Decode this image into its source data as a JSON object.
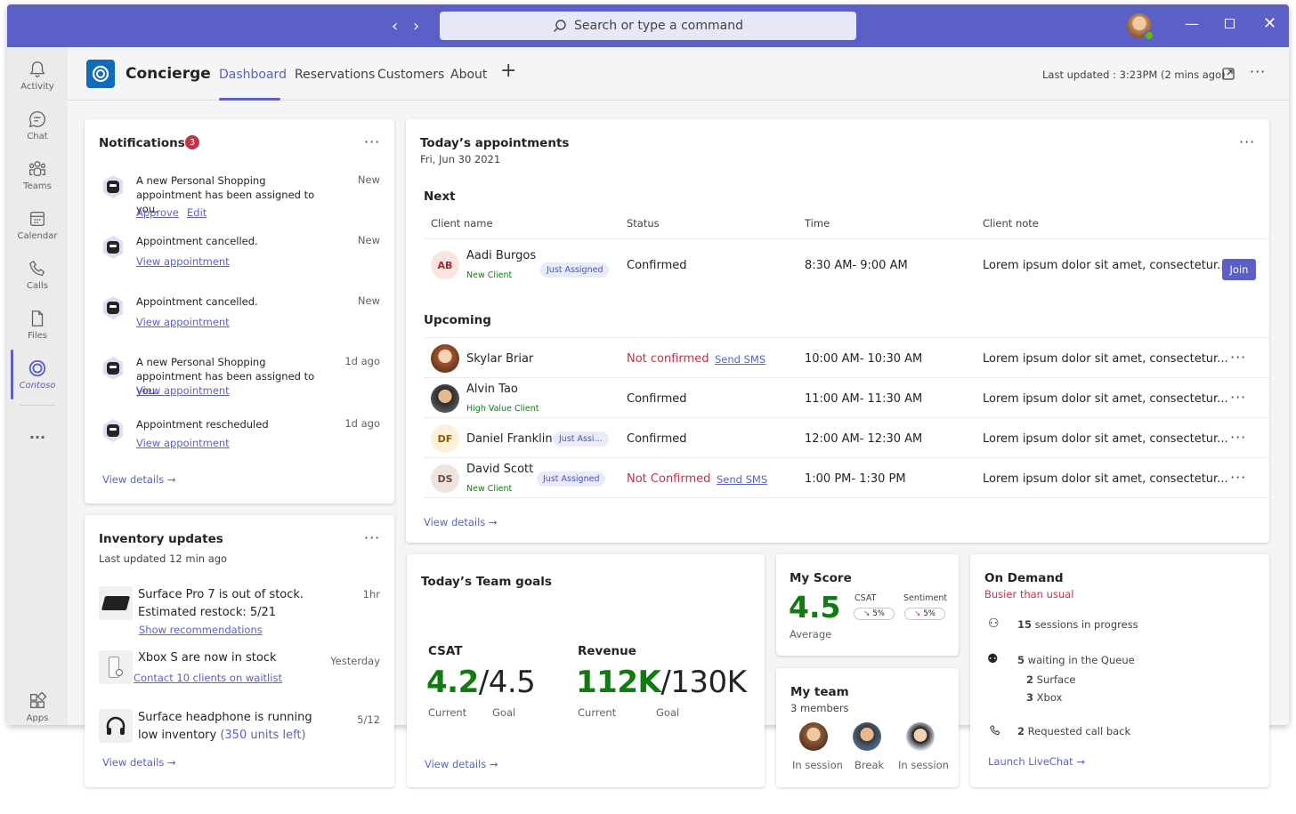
{
  "window": {
    "search_placeholder": "Search or type a command",
    "controls": [
      "minimize-icon",
      "maximize-icon",
      "close-icon"
    ]
  },
  "rail": {
    "items": [
      {
        "label": "Activity",
        "icon": "bell-icon"
      },
      {
        "label": "Chat",
        "icon": "chat-icon"
      },
      {
        "label": "Teams",
        "icon": "teams-icon"
      },
      {
        "label": "Calendar",
        "icon": "calendar-icon"
      },
      {
        "label": "Calls",
        "icon": "phone-icon"
      },
      {
        "label": "Files",
        "icon": "file-icon"
      },
      {
        "label": "Contoso",
        "icon": "contoso-icon"
      },
      {
        "label": "Apps",
        "icon": "apps-icon"
      }
    ],
    "more": "..."
  },
  "app": {
    "title": "Concierge",
    "tabs": [
      {
        "label": "Dashboard",
        "active": true
      },
      {
        "label": "Reservations"
      },
      {
        "label": "Customers"
      },
      {
        "label": "About"
      }
    ],
    "add_tab": "+",
    "last_updated": "Last updated : 3:23PM (2 mins ago)"
  },
  "notifications": {
    "title": "Notifications",
    "count": "3",
    "items": [
      {
        "text": "A new Personal Shopping appointment has been assigned to you.",
        "status": "New",
        "links": [
          "Approve",
          "Edit"
        ]
      },
      {
        "text": "Appointment cancelled.",
        "status": "New",
        "links": [
          "View appointment"
        ]
      },
      {
        "text": "Appointment cancelled.",
        "status": "New",
        "links": [
          "View appointment"
        ]
      },
      {
        "text": "A new Personal Shopping appointment has been assigned to you.",
        "status": "1d ago",
        "links": [
          "View appointment"
        ]
      },
      {
        "text": "Appointment rescheduled",
        "status": "1d ago",
        "links": [
          "View appointment"
        ]
      }
    ],
    "view_details": "View details"
  },
  "appointments": {
    "title": "Today’s appointments",
    "date": "Fri, Jun 30 2021",
    "next_label": "Next",
    "upcoming_label": "Upcoming",
    "columns": [
      "Client name",
      "Status",
      "Time",
      "Client note"
    ],
    "next": {
      "initials": "AB",
      "name": "Aadi Burgos",
      "badge": "Just Assigned",
      "sub": "New Client",
      "status": "Confirmed",
      "time": "8:30 AM- 9:00 AM",
      "note": "Lorem ipsum dolor sit amet, consectetur...",
      "action": "Join"
    },
    "upcoming": [
      {
        "name": "Skylar Briar",
        "status": "Not confirmed",
        "sms": "Send SMS",
        "time": "10:00 AM- 10:30 AM",
        "note": "Lorem ipsum dolor sit amet, consectetur..."
      },
      {
        "name": "Alvin Tao",
        "sub": "High Value Client",
        "status": "Confirmed",
        "time": "11:00 AM- 11:30 AM",
        "note": "Lorem ipsum dolor sit amet, consectetur..."
      },
      {
        "initials": "DF",
        "name": "Daniel Franklin",
        "badge": "Just Assi...",
        "status": "Confirmed",
        "time": "12:00 AM- 12:30 AM",
        "note": "Lorem ipsum dolor sit amet, consectetur..."
      },
      {
        "initials": "DS",
        "name": "David Scott",
        "badge": "Just Assigned",
        "sub": "New Client",
        "status": "Not Confirmed",
        "sms": "Send SMS",
        "time": "1:00 PM- 1:30 PM",
        "note": "Lorem ipsum dolor sit amet, consectetur..."
      }
    ],
    "view_details": "View details"
  },
  "inventory": {
    "title": "Inventory updates",
    "subtitle": "Last updated 12 min ago",
    "items": [
      {
        "line1": "Surface Pro 7 is out of stock.",
        "line2": "Estimated restock: 5/21",
        "time": "1hr",
        "link": "Show recommendations"
      },
      {
        "line1": "Xbox S are now in stock",
        "time": "Yesterday",
        "link": "Contact 10 clients on waitlist"
      },
      {
        "line1": "Surface headphone is running",
        "line2a": "low inventory ",
        "line2b": "(350 units left)",
        "time": "5/12"
      }
    ],
    "view_details": "View details"
  },
  "goals": {
    "title": "Today’s Team goals",
    "csat": {
      "label": "CSAT",
      "current": "4.2",
      "goal": "/4.5",
      "current_label": "Current",
      "goal_label": "Goal"
    },
    "revenue": {
      "label": "Revenue",
      "current": "112K",
      "goal": "/130K",
      "current_label": "Current",
      "goal_label": "Goal"
    },
    "view_details": "View details"
  },
  "score": {
    "title": "My Score",
    "value": "4.5",
    "value_label": "Average",
    "csat": {
      "label": "CSAT",
      "value": "5%"
    },
    "sentiment": {
      "label": "Sentiment",
      "value": "5%"
    }
  },
  "team": {
    "title": "My team",
    "members_label": "3 members",
    "members": [
      {
        "status": "In session"
      },
      {
        "status": "Break"
      },
      {
        "status": "In session"
      }
    ]
  },
  "ondemand": {
    "title": "On Demand",
    "subtitle": "Busier than usual",
    "sessions": {
      "count": "15",
      "text": " sessions in progress"
    },
    "queue": {
      "count": "5",
      "text": " waiting in the Queue"
    },
    "queue_breakdown": [
      {
        "count": "2",
        "text": " Surface"
      },
      {
        "count": "3",
        "text": " Xbox"
      }
    ],
    "callback": {
      "count": "2",
      "text": " Requested call back"
    },
    "launch": "Launch LiveChat"
  }
}
